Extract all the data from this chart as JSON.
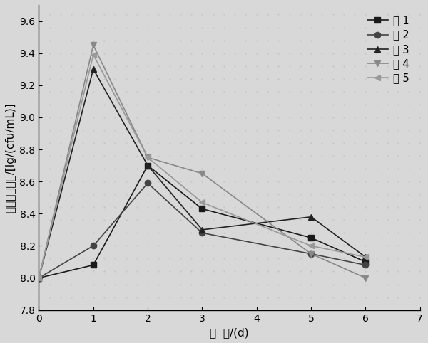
{
  "x": [
    0,
    1,
    2,
    3,
    5,
    6
  ],
  "series": {
    "组 1": {
      "y": [
        8.0,
        8.08,
        8.7,
        8.43,
        8.25,
        8.1
      ],
      "color": "#1a1a1a",
      "marker": "s"
    },
    "组 2": {
      "y": [
        8.0,
        8.2,
        8.59,
        8.28,
        8.15,
        8.08
      ],
      "color": "#444444",
      "marker": "o"
    },
    "组 3": {
      "y": [
        8.0,
        9.3,
        8.7,
        8.3,
        8.38,
        8.13
      ],
      "color": "#222222",
      "marker": "^"
    },
    "组 4": {
      "y": [
        8.0,
        9.45,
        8.75,
        8.65,
        8.15,
        8.0
      ],
      "color": "#888888",
      "marker": "v"
    },
    "组 5": {
      "y": [
        8.0,
        9.39,
        8.75,
        8.47,
        8.2,
        8.13
      ],
      "color": "#999999",
      "marker": "<"
    }
  },
  "ylabel": "乳酸菌对数值/[lg/(cfu/mL)]",
  "xlabel": "时  间/(d)",
  "xlim": [
    0,
    7
  ],
  "ylim": [
    7.8,
    9.7
  ],
  "yticks": [
    7.8,
    8.0,
    8.2,
    8.4,
    8.6,
    8.8,
    9.0,
    9.2,
    9.4,
    9.6
  ],
  "xticks": [
    0,
    1,
    2,
    3,
    4,
    5,
    6,
    7
  ],
  "linewidth": 1.2,
  "markersize": 6,
  "bg_color": "#d8d8d8",
  "dot_color": "#c0c0c0",
  "legend_fontsize": 10.5,
  "axis_fontsize": 11,
  "tick_fontsize": 10
}
